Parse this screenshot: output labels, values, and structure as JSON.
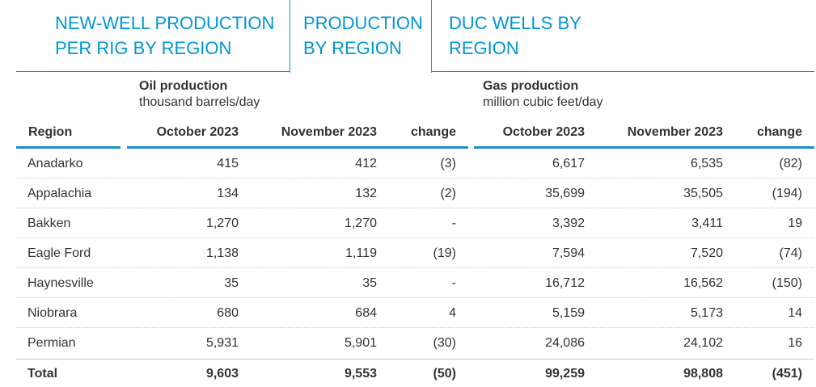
{
  "tabs": [
    {
      "line1": "NEW-WELL PRODUCTION",
      "line2": "PER RIG BY REGION",
      "active": false
    },
    {
      "line1": "PRODUCTION",
      "line2": "BY REGION",
      "active": true
    },
    {
      "line1": "DUC WELLS BY",
      "line2": "REGION",
      "active": false
    }
  ],
  "groups": {
    "oil": {
      "title": "Oil production",
      "unit": "thousand barrels/day"
    },
    "gas": {
      "title": "Gas production",
      "unit": "million cubic feet/day"
    }
  },
  "columns": {
    "region": "Region",
    "oil_oct": "October 2023",
    "oil_nov": "November 2023",
    "oil_change": "change",
    "gas_oct": "October 2023",
    "gas_nov": "November 2023",
    "gas_change": "change"
  },
  "accent_color": "#0096d6",
  "rows": [
    {
      "region": "Anadarko",
      "oil_oct": "415",
      "oil_nov": "412",
      "oil_change": "(3)",
      "gas_oct": "6,617",
      "gas_nov": "6,535",
      "gas_change": "(82)"
    },
    {
      "region": "Appalachia",
      "oil_oct": "134",
      "oil_nov": "132",
      "oil_change": "(2)",
      "gas_oct": "35,699",
      "gas_nov": "35,505",
      "gas_change": "(194)"
    },
    {
      "region": "Bakken",
      "oil_oct": "1,270",
      "oil_nov": "1,270",
      "oil_change": "-",
      "gas_oct": "3,392",
      "gas_nov": "3,411",
      "gas_change": "19"
    },
    {
      "region": "Eagle Ford",
      "oil_oct": "1,138",
      "oil_nov": "1,119",
      "oil_change": "(19)",
      "gas_oct": "7,594",
      "gas_nov": "7,520",
      "gas_change": "(74)"
    },
    {
      "region": "Haynesville",
      "oil_oct": "35",
      "oil_nov": "35",
      "oil_change": "-",
      "gas_oct": "16,712",
      "gas_nov": "16,562",
      "gas_change": "(150)"
    },
    {
      "region": "Niobrara",
      "oil_oct": "680",
      "oil_nov": "684",
      "oil_change": "4",
      "gas_oct": "5,159",
      "gas_nov": "5,173",
      "gas_change": "14"
    },
    {
      "region": "Permian",
      "oil_oct": "5,931",
      "oil_nov": "5,901",
      "oil_change": "(30)",
      "gas_oct": "24,086",
      "gas_nov": "24,102",
      "gas_change": "16"
    },
    {
      "region": "Total",
      "oil_oct": "9,603",
      "oil_nov": "9,553",
      "oil_change": "(50)",
      "gas_oct": "99,259",
      "gas_nov": "98,808",
      "gas_change": "(451)"
    }
  ]
}
